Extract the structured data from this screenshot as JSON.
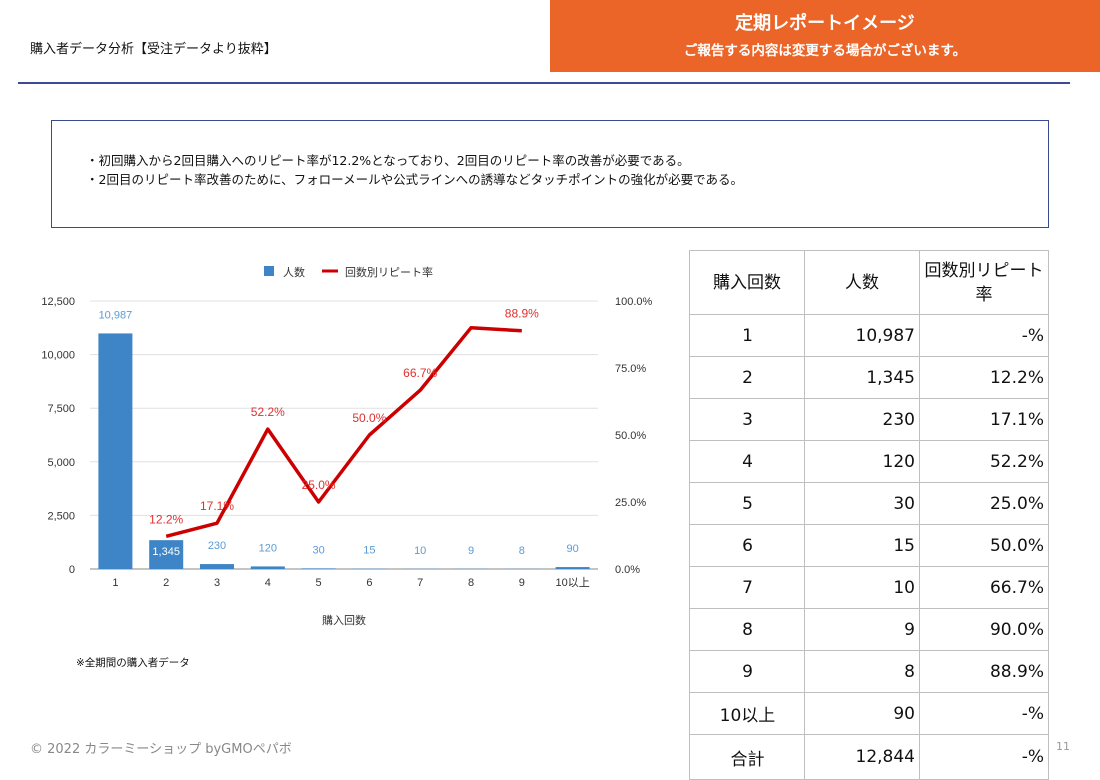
{
  "header": {
    "title": "購入者データ分析【受注データより抜粋】",
    "banner_title": "定期レポートイメージ",
    "banner_subtitle": "ご報告する内容は変更する場合がございます。"
  },
  "summary": {
    "lines": [
      "・初回購入から2回目購入へのリピート率が12.2%となっており、2回目のリピート率の改善が必要である。",
      "・2回目のリピート率改善のために、フォローメールや公式ラインへの誘導などタッチポイントの強化が必要である。"
    ]
  },
  "colors": {
    "bar": "#3d85c6",
    "line": "#cc0000",
    "banner": "#ea6527",
    "rule": "#3d4a95"
  },
  "chart_data": {
    "type": "bar",
    "categories": [
      "1",
      "2",
      "3",
      "4",
      "5",
      "6",
      "7",
      "8",
      "9",
      "10以上"
    ],
    "series": [
      {
        "name": "人数",
        "type": "bar",
        "axis": "left",
        "values": [
          10987,
          1345,
          230,
          120,
          30,
          15,
          10,
          9,
          8,
          90
        ],
        "labels": [
          "10,987",
          "1,345",
          "230",
          "120",
          "30",
          "15",
          "10",
          "9",
          "8",
          "90"
        ]
      },
      {
        "name": "回数別リピート率",
        "type": "line",
        "axis": "right",
        "values": [
          null,
          12.2,
          17.1,
          52.2,
          25.0,
          50.0,
          66.7,
          90.0,
          88.9,
          null
        ],
        "labels": [
          "",
          "12.2%",
          "17.1%",
          "52.2%",
          "25.0%",
          "50.0%",
          "66.7%",
          "",
          "88.9%",
          ""
        ]
      }
    ],
    "xlabel": "購入回数",
    "y_left": {
      "min": 0,
      "max": 12500,
      "ticks": [
        "0",
        "2,500",
        "5,000",
        "7,500",
        "10,000",
        "12,500"
      ]
    },
    "y_right": {
      "min": 0,
      "max": 100,
      "ticks": [
        "0.0%",
        "25.0%",
        "50.0%",
        "75.0%",
        "100.0%"
      ]
    },
    "grid": true,
    "legend_position": "top"
  },
  "footnote": "※全期間の購入者データ",
  "table": {
    "headers": [
      "購入回数",
      "人数",
      "回数別リピート率"
    ],
    "rows": [
      [
        "1",
        "10,987",
        "-%"
      ],
      [
        "2",
        "1,345",
        "12.2%"
      ],
      [
        "3",
        "230",
        "17.1%"
      ],
      [
        "4",
        "120",
        "52.2%"
      ],
      [
        "5",
        "30",
        "25.0%"
      ],
      [
        "6",
        "15",
        "50.0%"
      ],
      [
        "7",
        "10",
        "66.7%"
      ],
      [
        "8",
        "9",
        "90.0%"
      ],
      [
        "9",
        "8",
        "88.9%"
      ],
      [
        "10以上",
        "90",
        "-%"
      ],
      [
        "合計",
        "12,844",
        "-%"
      ]
    ]
  },
  "footer": {
    "copyright": "© 2022 カラーミーショップ byGMOペパボ",
    "page": "11"
  }
}
